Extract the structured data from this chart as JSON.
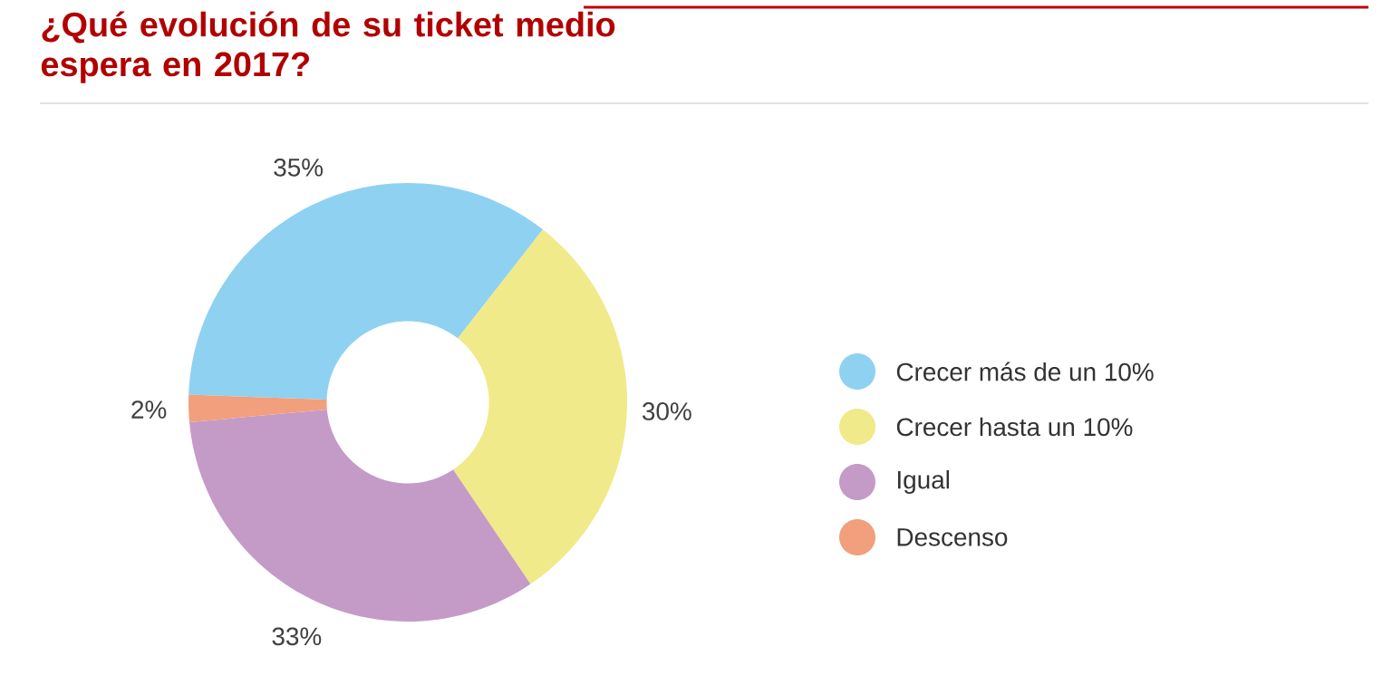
{
  "chart_data": {
    "type": "donut",
    "title": "¿Qué evolución de su ticket medio espera en 2017?",
    "categories": [
      "Crecer más de un 10%",
      "Crecer hasta un 10%",
      "Igual",
      "Descenso"
    ],
    "values": [
      35,
      30,
      33,
      2
    ],
    "colors": [
      "#8fd1f1",
      "#f0ea8a",
      "#c49bc7",
      "#f19f7d"
    ],
    "value_labels": [
      "35%",
      "30%",
      "33%",
      "2%"
    ],
    "legend": "right"
  }
}
